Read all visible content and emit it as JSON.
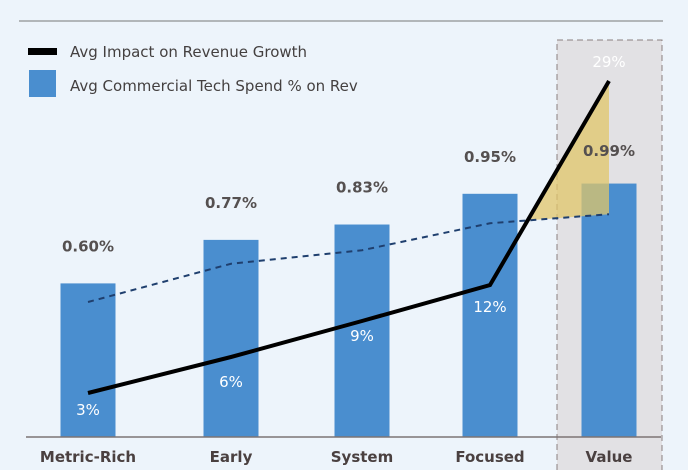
{
  "chart_data": {
    "type": "bar+line",
    "categories": [
      "Metric-Rich",
      "Early",
      "System",
      "Focused",
      "Value"
    ],
    "series": [
      {
        "name": "Avg Commercial Tech Spend % on Rev",
        "kind": "bar",
        "values": [
          0.6,
          0.77,
          0.83,
          0.95,
          0.99
        ],
        "labels": [
          "0.60%",
          "0.77%",
          "0.83%",
          "0.95%",
          "0.99%"
        ],
        "color": "#4a8ecf"
      },
      {
        "name": "Avg Impact on Revenue Growth",
        "kind": "line",
        "values": [
          3,
          6,
          9,
          12,
          29
        ],
        "labels": [
          "3%",
          "6%",
          "9%",
          "12%",
          "29%"
        ],
        "color": "#000000"
      }
    ],
    "trendline": {
      "style": "dashed",
      "follows": "Avg Commercial Tech Spend % on Rev",
      "color": "#1f3f6e"
    },
    "highlight": {
      "category": "Value",
      "box_color": "#e2e1e4",
      "fill_color": "#e0c56a"
    },
    "legend_placement": "top-left",
    "grid": false
  }
}
